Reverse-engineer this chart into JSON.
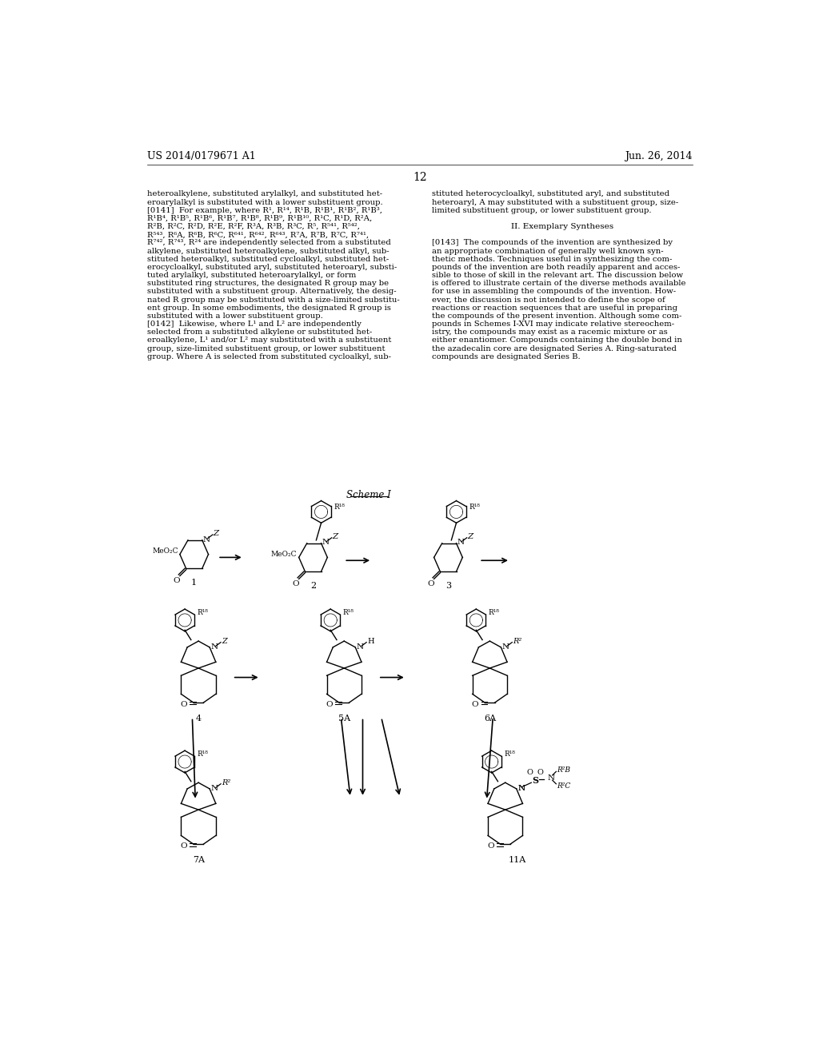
{
  "background_color": "#ffffff",
  "header_left": "US 2014/0179671 A1",
  "header_right": "Jun. 26, 2014",
  "page_number": "12",
  "scheme_label": "Scheme I",
  "col1_lines": [
    "heteroalkylene, substituted arylalkyl, and substituted het-",
    "eroarylalkyl is substituted with a lower substituent group.",
    "[0141]  For example, where R¹, R¹⁴, R¹B, R¹B¹, R¹B², R¹B³,",
    "R¹B⁴, R¹B⁵, R¹B⁶, R¹B⁷, R¹B⁸, R¹B⁹, R¹B¹⁰, R¹C, R¹D, R²A,",
    "R²B, R²C, R²D, R²E, R²F, R³A, R³B, R³C, R⁵, R⁵⁴¹, R⁵⁴²,",
    "R⁵⁴³, R⁶A, R⁶B, R⁶C, R⁶⁴¹, R⁶⁴², R⁶⁴³, R⁷A, R⁷B, R⁷C, R⁷⁴¹,",
    "R⁷⁴², R⁷⁴³, R²⁴ are independently selected from a substituted",
    "alkylene, substituted heteroalkylene, substituted alkyl, sub-",
    "stituted heteroalkyl, substituted cycloalkyl, substituted het-",
    "erocycloalkyl, substituted aryl, substituted heteroaryl, substi-",
    "tuted arylalkyl, substituted heteroarylalkyl, or form",
    "substituted ring structures, the designated R group may be",
    "substituted with a substituent group. Alternatively, the desig-",
    "nated R group may be substituted with a size-limited substitu-",
    "ent group. In some embodiments, the designated R group is",
    "substituted with a lower substituent group.",
    "[0142]  Likewise, where L¹ and L² are independently",
    "selected from a substituted alkylene or substituted het-",
    "eroalkylene, L¹ and/or L² may substituted with a substituent",
    "group, size-limited substituent group, or lower substituent",
    "group. Where A is selected from substituted cycloalkyl, sub-"
  ],
  "col2_lines": [
    "stituted heterocycloalkyl, substituted aryl, and substituted",
    "heteroaryl, A may substituted with a substituent group, size-",
    "limited substituent group, or lower substituent group.",
    "",
    "II. Exemplary Syntheses",
    "",
    "[0143]  The compounds of the invention are synthesized by",
    "an appropriate combination of generally well known syn-",
    "thetic methods. Techniques useful in synthesizing the com-",
    "pounds of the invention are both readily apparent and acces-",
    "sible to those of skill in the relevant art. The discussion below",
    "is offered to illustrate certain of the diverse methods available",
    "for use in assembling the compounds of the invention. How-",
    "ever, the discussion is not intended to define the scope of",
    "reactions or reaction sequences that are useful in preparing",
    "the compounds of the present invention. Although some com-",
    "pounds in Schemes I-XVI may indicate relative stereochem-",
    "istry, the compounds may exist as a racemic mixture or as",
    "either enantiomer. Compounds containing the double bond in",
    "the azadecalin core are designated Series A. Ring-saturated",
    "compounds are designated Series B."
  ]
}
